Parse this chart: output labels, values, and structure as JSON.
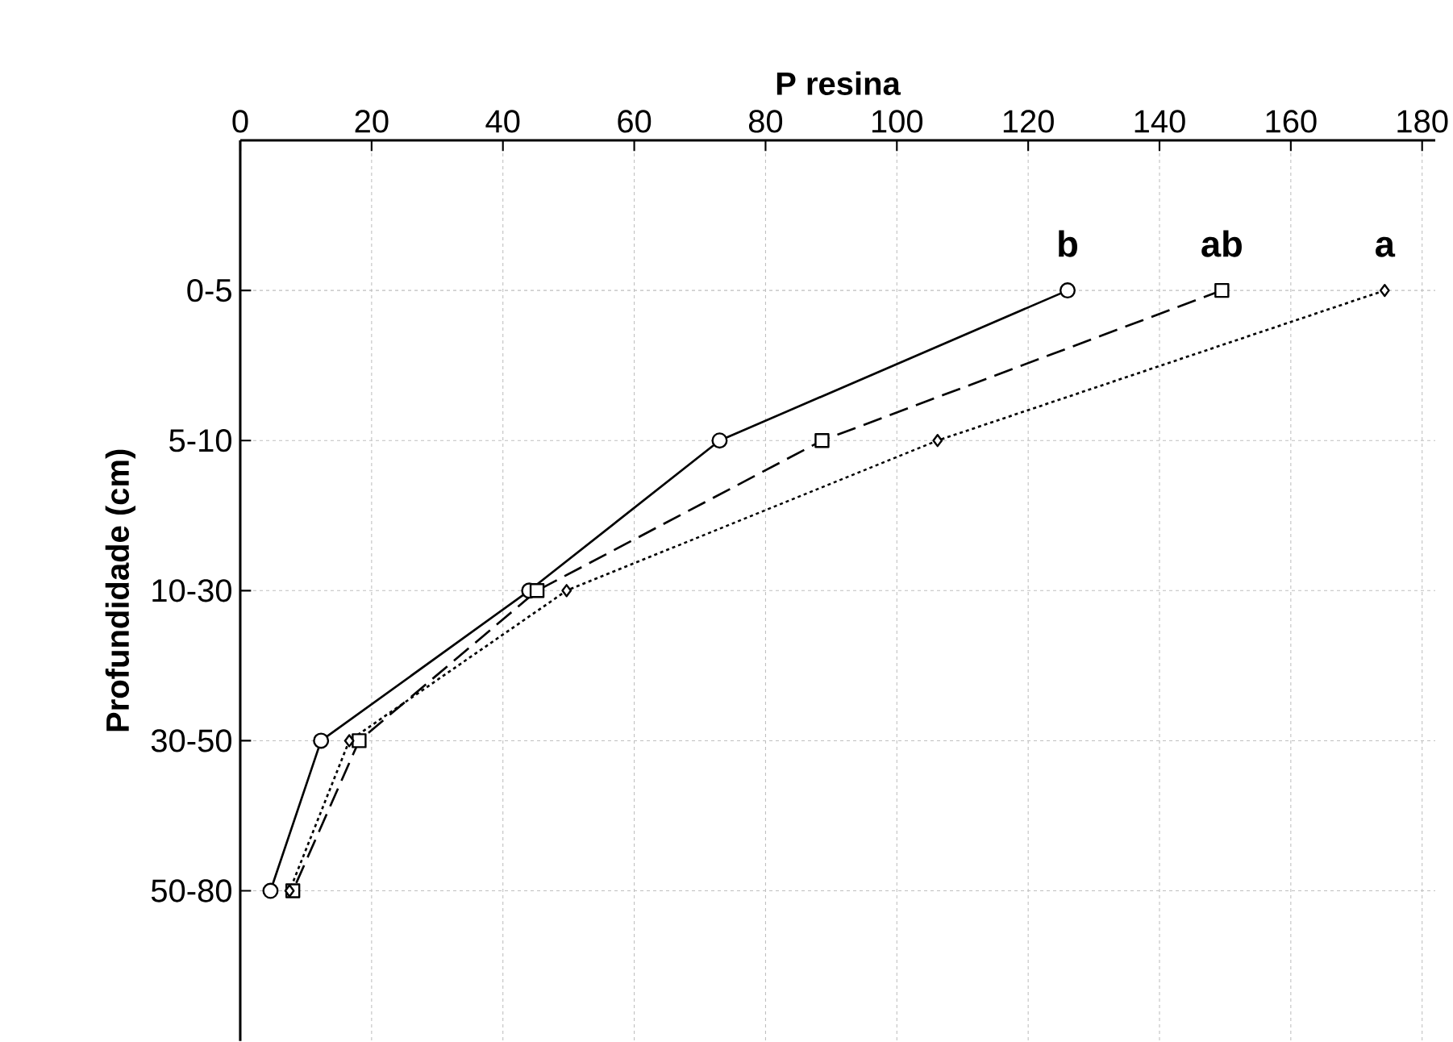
{
  "chart_data": {
    "type": "line",
    "orientation": "horizontal",
    "xlabel": "P resina",
    "ylabel": "Profundidade (cm)",
    "categories": [
      "0-5",
      "5-10",
      "10-30",
      "30-50",
      "50-80"
    ],
    "xlim": [
      0,
      182
    ],
    "xticks": [
      0,
      20,
      40,
      60,
      80,
      100,
      120,
      140,
      160,
      180
    ],
    "grid": true,
    "series": [
      {
        "color": "#000000",
        "marker": "circle",
        "line_style": "solid",
        "values": [
          126,
          73,
          44,
          12.3,
          4.6
        ]
      },
      {
        "color": "#000000",
        "marker": "square",
        "line_style": "dashed",
        "values": [
          149.5,
          88.6,
          45.2,
          18.1,
          8.0
        ]
      },
      {
        "color": "#000000",
        "marker": "diamond",
        "line_style": "dotted",
        "values": [
          174.3,
          106.2,
          49.7,
          16.6,
          7.5
        ]
      }
    ],
    "annotations": [
      {
        "text": "b",
        "x": 126,
        "y": "0-5"
      },
      {
        "text": "ab",
        "x": 149.5,
        "y": "0-5"
      },
      {
        "text": "a",
        "x": 174.3,
        "y": "0-5"
      }
    ]
  }
}
